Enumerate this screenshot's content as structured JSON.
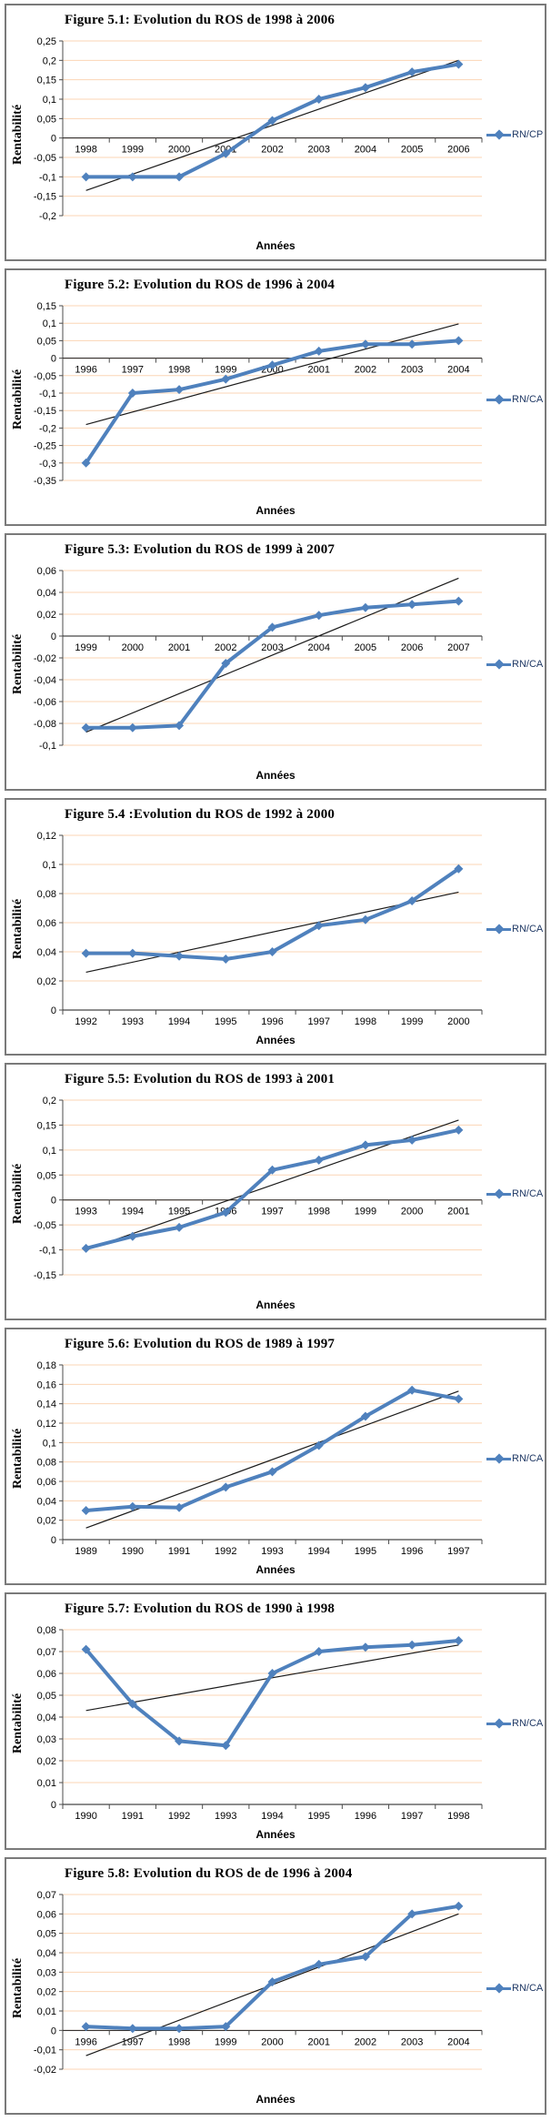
{
  "colors": {
    "series": "#4F81BD",
    "trendline": "#1a1a1a",
    "gridline": "#FBD5B5",
    "axis": "#4d4d4d",
    "legend_text": "#1F3864",
    "panel_border": "#7a7a7a"
  },
  "chart_data": [
    {
      "type": "line",
      "fig": "5.1",
      "title": "Figure 5.1: Evolution du ROS de 1998 à 2006",
      "xlabel": "Années",
      "ylabel": "Rentabilité",
      "categories": [
        "1998",
        "1999",
        "2000",
        "2001",
        "2002",
        "2003",
        "2004",
        "2005",
        "2006"
      ],
      "series": [
        {
          "name": "RN/CP",
          "values": [
            -0.1,
            -0.1,
            -0.1,
            -0.04,
            0.045,
            0.1,
            0.13,
            0.17,
            0.19
          ]
        }
      ],
      "trendline": {
        "y_start": -0.135,
        "y_end": 0.2
      },
      "ylim": [
        -0.2,
        0.25
      ],
      "ystep": 0.05,
      "grid": true,
      "legend_position": "right"
    },
    {
      "type": "line",
      "fig": "5.2",
      "title": "Figure 5.2: Evolution du ROS de 1996 à 2004",
      "xlabel": "Années",
      "ylabel": "Rentabilité",
      "categories": [
        "1996",
        "1997",
        "1998",
        "1999",
        "2000",
        "2001",
        "2002",
        "2003",
        "2004"
      ],
      "series": [
        {
          "name": "RN/CA",
          "values": [
            -0.3,
            -0.1,
            -0.09,
            -0.06,
            -0.02,
            0.02,
            0.04,
            0.04,
            0.05
          ]
        }
      ],
      "trendline": {
        "y_start": -0.19,
        "y_end": 0.098
      },
      "ylim": [
        -0.35,
        0.15
      ],
      "ystep": 0.05,
      "grid": true,
      "legend_position": "right"
    },
    {
      "type": "line",
      "fig": "5.3",
      "title": "Figure 5.3: Evolution du ROS de 1999 à 2007",
      "xlabel": "Années",
      "ylabel": "Rentabilité",
      "categories": [
        "1999",
        "2000",
        "2001",
        "2002",
        "2003",
        "2004",
        "2005",
        "2006",
        "2007"
      ],
      "series": [
        {
          "name": "RN/CA",
          "values": [
            -0.084,
            -0.084,
            -0.082,
            -0.025,
            0.008,
            0.019,
            0.026,
            0.029,
            0.032
          ]
        }
      ],
      "trendline": {
        "y_start": -0.088,
        "y_end": 0.053
      },
      "ylim": [
        -0.1,
        0.06
      ],
      "ystep": 0.02,
      "grid": true,
      "legend_position": "right"
    },
    {
      "type": "line",
      "fig": "5.4",
      "title": "Figure 5.4 :Evolution du ROS de 1992 à 2000",
      "xlabel": "Années",
      "ylabel": "Rentabilité",
      "categories": [
        "1992",
        "1993",
        "1994",
        "1995",
        "1996",
        "1997",
        "1998",
        "1999",
        "2000"
      ],
      "series": [
        {
          "name": "RN/CA",
          "values": [
            0.039,
            0.039,
            0.037,
            0.035,
            0.04,
            0.058,
            0.062,
            0.075,
            0.097
          ]
        }
      ],
      "trendline": {
        "y_start": 0.026,
        "y_end": 0.081
      },
      "ylim": [
        0,
        0.12
      ],
      "ystep": 0.02,
      "grid": true,
      "legend_position": "right"
    },
    {
      "type": "line",
      "fig": "5.5",
      "title": "Figure 5.5: Evolution du ROS de 1993 à 2001",
      "xlabel": "Années",
      "ylabel": "Rentabilité",
      "categories": [
        "1993",
        "1994",
        "1995",
        "1996",
        "1997",
        "1998",
        "1999",
        "2000",
        "2001"
      ],
      "series": [
        {
          "name": "RN/CA",
          "values": [
            -0.097,
            -0.073,
            -0.055,
            -0.025,
            0.06,
            0.08,
            0.11,
            0.12,
            0.14
          ]
        }
      ],
      "trendline": {
        "y_start": -0.1,
        "y_end": 0.16
      },
      "ylim": [
        -0.15,
        0.2
      ],
      "ystep": 0.05,
      "grid": true,
      "legend_position": "right"
    },
    {
      "type": "line",
      "fig": "5.6",
      "title": "Figure 5.6: Evolution du ROS de 1989 à 1997",
      "xlabel": "Années",
      "ylabel": "Rentabilité",
      "categories": [
        "1989",
        "1990",
        "1991",
        "1992",
        "1993",
        "1994",
        "1995",
        "1996",
        "1997"
      ],
      "series": [
        {
          "name": "RN/CA",
          "values": [
            0.03,
            0.034,
            0.033,
            0.054,
            0.07,
            0.097,
            0.127,
            0.154,
            0.145
          ]
        }
      ],
      "trendline": {
        "y_start": 0.012,
        "y_end": 0.153
      },
      "ylim": [
        0,
        0.18
      ],
      "ystep": 0.02,
      "grid": true,
      "legend_position": "right"
    },
    {
      "type": "line",
      "fig": "5.7",
      "title": "Figure 5.7: Evolution du ROS de 1990 à 1998",
      "xlabel": "Années",
      "ylabel": "Rentabilité",
      "categories": [
        "1990",
        "1991",
        "1992",
        "1993",
        "1994",
        "1995",
        "1996",
        "1997",
        "1998"
      ],
      "series": [
        {
          "name": "RN/CA",
          "values": [
            0.071,
            0.046,
            0.029,
            0.027,
            0.06,
            0.07,
            0.072,
            0.073,
            0.075
          ]
        }
      ],
      "trendline": {
        "y_start": 0.043,
        "y_end": 0.073
      },
      "ylim": [
        0,
        0.08
      ],
      "ystep": 0.01,
      "grid": true,
      "legend_position": "right"
    },
    {
      "type": "line",
      "fig": "5.8",
      "title": "Figure 5.8: Evolution du ROS de de 1996 à 2004",
      "xlabel": "Années",
      "ylabel": "Rentabilité",
      "categories": [
        "1996",
        "1997",
        "1998",
        "1999",
        "2000",
        "2001",
        "2002",
        "2003",
        "2004"
      ],
      "series": [
        {
          "name": "RN/CA",
          "values": [
            0.002,
            0.001,
            0.001,
            0.002,
            0.025,
            0.034,
            0.038,
            0.06,
            0.064
          ]
        }
      ],
      "trendline": {
        "y_start": -0.013,
        "y_end": 0.06
      },
      "ylim": [
        -0.02,
        0.07
      ],
      "ystep": 0.01,
      "grid": true,
      "legend_position": "right"
    }
  ]
}
